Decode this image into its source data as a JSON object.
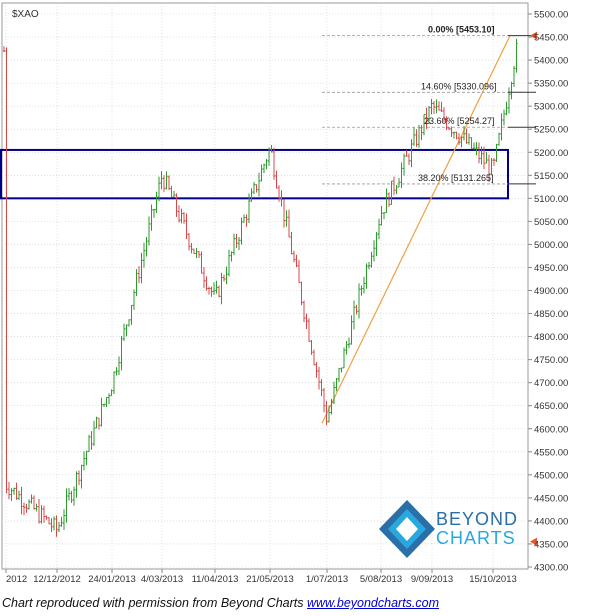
{
  "chart_data": {
    "type": "candlestick",
    "ticker": "$XAO",
    "y_ticks": [
      "5500.00",
      "5450.00",
      "5400.00",
      "5350.00",
      "5300.00",
      "5250.00",
      "5200.00",
      "5150.00",
      "5100.00",
      "5050.00",
      "5000.00",
      "4950.00",
      "4900.00",
      "4850.00",
      "4800.00",
      "4750.00",
      "4700.00",
      "4650.00",
      "4600.00",
      "4550.00",
      "4500.00",
      "4450.00",
      "4400.00",
      "4350.00",
      "4300.00"
    ],
    "ylim": [
      4300,
      5500
    ],
    "x_ticks": [
      "2012",
      "12/12/2012",
      "24/01/2013",
      "4/03/2013",
      "11/04/2013",
      "21/05/2013",
      "1/07/2013",
      "5/08/2013",
      "9/09/2013",
      "15/10/2013"
    ],
    "price_path_keypoints": [
      {
        "date": "2012",
        "close": 4480
      },
      {
        "date": "12/12/2012",
        "close": 4380
      },
      {
        "date": "24/01/2013",
        "close": 4700
      },
      {
        "date": "4/03/2013",
        "close": 5150
      },
      {
        "date": "11/04/2013",
        "close": 4880
      },
      {
        "date": "21/05/2013",
        "close": 5210
      },
      {
        "date": "1/07/2013",
        "close": 4620
      },
      {
        "date": "5/08/2013",
        "close": 5070
      },
      {
        "date": "9/09/2013",
        "close": 5300
      },
      {
        "date": "15/10/2013",
        "close": 5160
      },
      {
        "date": "end",
        "close": 5420
      }
    ],
    "fib_levels": [
      {
        "percent": "0.00%",
        "value": "[5453.10]",
        "price": 5453.1
      },
      {
        "percent": "14.60%",
        "value": "[5330.096]",
        "price": 5330.1
      },
      {
        "percent": "23.60%",
        "value": "[5254.27]",
        "price": 5254.27
      },
      {
        "percent": "38.20%",
        "value": "[5131.265]",
        "price": 5131.27
      }
    ],
    "support_zone": {
      "low": 5100,
      "high": 5205
    },
    "trendline": {
      "from": 4612,
      "to": 5453
    },
    "right_markers": [
      5453.1,
      4355
    ],
    "colors": {
      "up": "#2e9b2e",
      "down": "#d94848",
      "zone": "#00008b",
      "trend": "#f0a040",
      "marker": "#e5542a",
      "grid": "#cccccc"
    }
  },
  "logo": {
    "line1": "BEYOND",
    "line2": "CHARTS"
  },
  "caption": {
    "text": "Chart reproduced with permission from Beyond Charts ",
    "link": "www.beyondcharts.com"
  }
}
